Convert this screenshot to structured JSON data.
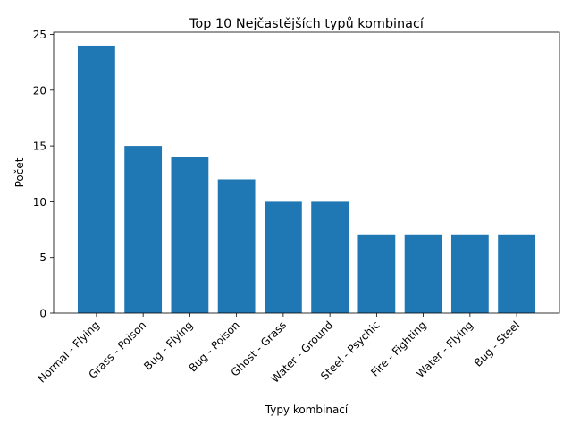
{
  "chart_data": {
    "type": "bar",
    "title": "Top 10 Nejčastějších typů kombinací",
    "xlabel": "Typy kombinací",
    "ylabel": "Počet",
    "categories": [
      "Normal - Flying",
      "Grass - Poison",
      "Bug - Flying",
      "Bug - Poison",
      "Ghost - Grass",
      "Water - Ground",
      "Steel - Psychic",
      "Fire - Fighting",
      "Water - Flying",
      "Bug - Steel"
    ],
    "values": [
      24,
      15,
      14,
      12,
      10,
      10,
      7,
      7,
      7,
      7
    ],
    "ylim": [
      0,
      25.2
    ],
    "yticks": [
      0,
      5,
      10,
      15,
      20,
      25
    ],
    "bar_color": "#1f77b4",
    "grid": false,
    "legend": "none"
  }
}
